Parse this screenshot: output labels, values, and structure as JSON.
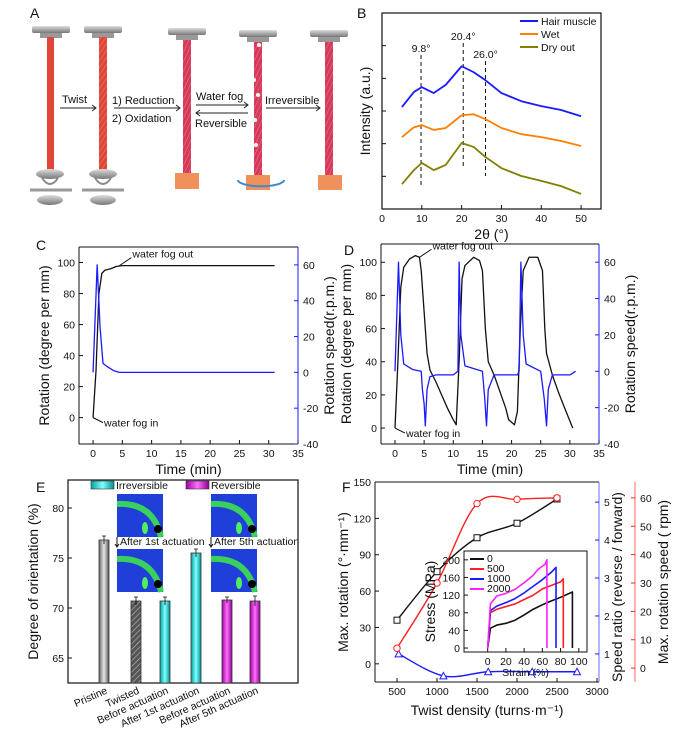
{
  "panels": {
    "A": {
      "label": "A",
      "steps": {
        "twist": "Twist",
        "reduction": "1) Reduction",
        "oxidation": "2) Oxidation",
        "water_fog": "Water fog",
        "reversible": "Reversible",
        "irreversible": "Irreversible"
      }
    },
    "B": {
      "label": "B"
    },
    "C": {
      "label": "C"
    },
    "D": {
      "label": "D"
    },
    "E": {
      "label": "E"
    },
    "F": {
      "label": "F"
    }
  },
  "colors": {
    "blue": "#1a1aff",
    "orange": "#ff8000",
    "olive": "#808000",
    "red": "#ff2020",
    "black": "#111111",
    "cyan": "#00e5e5",
    "magenta": "#e000e0",
    "gray": "#9a9a9a",
    "rod_red": "#e0473a",
    "rod_pink": "#d63a5a"
  },
  "chart_data": [
    {
      "panel": "B",
      "type": "line",
      "xlabel": "2θ (°)",
      "ylabel": "Intensity (a.u.)",
      "xlim": [
        0,
        55
      ],
      "ylim": [
        0,
        6
      ],
      "xticks": [
        0,
        10,
        20,
        30,
        40,
        50
      ],
      "ytick_marks": [
        1,
        2,
        3,
        4,
        5
      ],
      "legend_position": "top-right",
      "series": [
        {
          "name": "Hair muscle",
          "color": "#1a1aff",
          "x": [
            5,
            8,
            10,
            13,
            16,
            20,
            23,
            26,
            30,
            35,
            40,
            45,
            50
          ],
          "y": [
            3.12,
            3.58,
            3.73,
            3.55,
            3.8,
            4.37,
            4.19,
            3.94,
            3.55,
            3.3,
            3.15,
            3.03,
            2.84
          ]
        },
        {
          "name": "Wet",
          "color": "#ff8000",
          "x": [
            5,
            8,
            10,
            13,
            16,
            20,
            23,
            26,
            30,
            35,
            40,
            45,
            50
          ],
          "y": [
            2.2,
            2.5,
            2.57,
            2.42,
            2.48,
            2.87,
            2.9,
            2.75,
            2.48,
            2.29,
            2.2,
            2.08,
            1.93
          ]
        },
        {
          "name": "Dry out",
          "color": "#808000",
          "x": [
            5,
            8,
            10,
            13,
            16,
            20,
            23,
            26,
            30,
            35,
            40,
            45,
            50
          ],
          "y": [
            0.76,
            1.19,
            1.41,
            1.19,
            1.35,
            2.02,
            1.9,
            1.59,
            1.25,
            1.01,
            0.86,
            0.7,
            0.46
          ]
        }
      ],
      "annotations": [
        {
          "text": "9.8°",
          "x": 9.8
        },
        {
          "text": "20.4°",
          "x": 20.4
        },
        {
          "text": "26.0°",
          "x": 26.0
        }
      ]
    },
    {
      "panel": "C",
      "type": "line",
      "xlabel": "Time (min)",
      "ylabel": "Rotation (degree per mm)",
      "y2label": "Rotation speed(r.p.m.)",
      "xlim": [
        -2.4,
        35
      ],
      "ylim": [
        -17,
        110
      ],
      "y2lim": [
        -40,
        70
      ],
      "xticks": [
        0,
        5,
        10,
        15,
        20,
        25,
        30,
        35
      ],
      "yticks": [
        0,
        20,
        40,
        60,
        80,
        100
      ],
      "y2ticks": [
        -40,
        -20,
        0,
        20,
        40,
        60
      ],
      "series": [
        {
          "name": "Rotation",
          "axis": "left",
          "color": "#111111",
          "x": [
            0,
            0.5,
            1,
            1.5,
            2,
            3,
            4,
            5,
            31
          ],
          "y": [
            0,
            30,
            80,
            93,
            95,
            96,
            97.5,
            98,
            98
          ]
        },
        {
          "name": "Rotation speed",
          "axis": "right",
          "color": "#1a1aff",
          "x": [
            0,
            0.7,
            1.2,
            1.7,
            2.5,
            3.5,
            4.5,
            31
          ],
          "y": [
            0,
            60,
            25,
            5,
            3,
            1,
            0,
            0
          ]
        }
      ],
      "annotations": [
        {
          "text": "water fog out",
          "x": 4.5,
          "y": 98
        },
        {
          "text": "water fog in",
          "x": 0,
          "y": 0
        }
      ]
    },
    {
      "panel": "D",
      "type": "line",
      "xlabel": "Time (min)",
      "ylabel": "Rotation (degree per mm)",
      "y2label": "Rotation speed(r.p.m.)",
      "xlim": [
        -2.4,
        35
      ],
      "ylim": [
        -9.6,
        111
      ],
      "y2lim": [
        -40,
        70
      ],
      "xticks": [
        0,
        5,
        10,
        15,
        20,
        25,
        30,
        35
      ],
      "yticks": [
        0,
        20,
        40,
        60,
        80,
        100
      ],
      "y2ticks": [
        -40,
        -20,
        0,
        20,
        40,
        60
      ],
      "series": [
        {
          "name": "Rotation",
          "axis": "left",
          "color": "#111111",
          "x": [
            0,
            0.5,
            1,
            1.5,
            2.5,
            3.5,
            4.2,
            4.5,
            5,
            5.5,
            6,
            7,
            8,
            9,
            10,
            10.5,
            11,
            11.5,
            12,
            13.5,
            14.5,
            15,
            15.5,
            16,
            17,
            18,
            19,
            19.5,
            20.5,
            21,
            21.5,
            22,
            23,
            24.5,
            25.3,
            25.7,
            26,
            27,
            28,
            29,
            30.5
          ],
          "y": [
            0,
            40,
            85,
            97,
            102,
            104,
            103,
            95,
            70,
            45,
            35,
            28,
            20,
            12,
            5,
            2,
            40,
            90,
            98,
            103,
            101,
            95,
            60,
            40,
            32,
            22,
            12,
            5,
            2,
            10,
            60,
            95,
            103,
            103,
            95,
            60,
            45,
            32,
            22,
            13,
            0
          ]
        },
        {
          "name": "Rotation speed",
          "axis": "right",
          "color": "#1a1aff",
          "x": [
            0,
            0.6,
            1,
            1.5,
            3,
            4.5,
            4.7,
            5,
            5.2,
            5.5,
            6,
            7,
            10,
            10.8,
            11,
            11.3,
            12,
            15,
            15.4,
            15.7,
            16,
            17,
            21,
            21.3,
            21.6,
            22,
            22.5,
            25,
            25.6,
            26,
            26.3,
            27,
            30,
            31
          ],
          "y": [
            0,
            60,
            20,
            4,
            1,
            0,
            -10,
            -18,
            -30,
            -10,
            -3,
            -2,
            -2,
            0,
            60,
            20,
            3,
            0,
            -15,
            -30,
            -10,
            -2,
            -2,
            0,
            60,
            20,
            4,
            0,
            -15,
            -30,
            -10,
            -2,
            -2,
            0
          ]
        }
      ],
      "annotations": [
        {
          "text": "water fog out",
          "x": 4.2,
          "y": 103
        },
        {
          "text": "water fog in",
          "x": 0,
          "y": 0
        }
      ]
    },
    {
      "panel": "E",
      "type": "bar",
      "ylabel": "Degree of orientation (%)",
      "categories": [
        "Pristine",
        "Twisted",
        "Before actuation",
        "After 1st actuation",
        "Before actuation",
        "After 5th actuation"
      ],
      "values": [
        76.8,
        70.7,
        70.7,
        75.5,
        70.8,
        70.7
      ],
      "errors": [
        0.4,
        0.4,
        0.4,
        0.4,
        0.3,
        0.5
      ],
      "groups": [
        "none",
        "none",
        "Irreversible",
        "Irreversible",
        "Reversible",
        "Reversible"
      ],
      "ylim": [
        62.5,
        82.8
      ],
      "yticks": [
        65,
        70,
        75,
        80
      ],
      "legend": [
        {
          "name": "Irreversible",
          "color": "#00e5e5"
        },
        {
          "name": "Reversible",
          "color": "#e000e0"
        }
      ],
      "legend_position": "top",
      "inset_captions": [
        "After 1st actuation",
        "After 5th actuation"
      ]
    },
    {
      "panel": "F",
      "type": "line",
      "xlabel": "Twist density (turns·m⁻¹)",
      "ylabel": "Max. rotation (°·mm⁻¹)",
      "y2label": "Speed ratio (reverse / forward)",
      "y3label": "Max. rotation speed ( rpm)",
      "xlim": [
        225,
        3025
      ],
      "ylim": [
        -15,
        150
      ],
      "y2lim": [
        0.26,
        5.53
      ],
      "y3lim": [
        -4.9,
        65.6
      ],
      "xticks": [
        500,
        1000,
        1500,
        2000,
        2500,
        3000
      ],
      "yticks": [
        0,
        30,
        60,
        90,
        120,
        150
      ],
      "y2ticks": [
        1,
        2,
        3,
        4,
        5
      ],
      "y3ticks": [
        0,
        10,
        20,
        30,
        40,
        50,
        60
      ],
      "series": [
        {
          "name": "Max. rotation",
          "axis": "left",
          "marker": "square",
          "color": "#111111",
          "x": [
            500,
            1000,
            1500,
            2000,
            2500
          ],
          "y": [
            36,
            76,
            104,
            116,
            136
          ]
        },
        {
          "name": "Speed ratio",
          "axis": "right",
          "marker": "triangle",
          "color": "#1a1aff",
          "x": [
            520,
            1080,
            1640,
            2190,
            2750
          ],
          "y": [
            1.0,
            0.42,
            0.53,
            0.53,
            0.53
          ]
        },
        {
          "name": "Max. rotation speed",
          "axis": "right2",
          "marker": "circle",
          "color": "#ff2020",
          "x": [
            500,
            1000,
            1500,
            2000,
            2500
          ],
          "y": [
            7,
            30,
            58,
            59.5,
            60
          ]
        }
      ]
    },
    {
      "panel": "F-inset",
      "type": "line",
      "xlabel": "Strain (%)",
      "ylabel": "Stress (MPa)",
      "xlim": [
        -26,
        109
      ],
      "ylim": [
        -9,
        220
      ],
      "xticks": [
        0,
        20,
        40,
        60,
        80,
        100
      ],
      "yticks": [
        0,
        40,
        80,
        120,
        160,
        200
      ],
      "legend_position": "top-left",
      "series": [
        {
          "name": "0",
          "color": "#111111",
          "x": [
            0,
            3,
            10,
            20,
            30,
            40,
            50,
            60,
            70,
            80,
            93,
            93
          ],
          "y": [
            0,
            45,
            52,
            56,
            63,
            75,
            88,
            98,
            107,
            115,
            127,
            0
          ]
        },
        {
          "name": "500",
          "color": "#ff2020",
          "x": [
            0,
            3,
            10,
            20,
            30,
            40,
            50,
            60,
            70,
            80,
            83,
            83
          ],
          "y": [
            0,
            80,
            88,
            94,
            100,
            110,
            120,
            134,
            142,
            150,
            157,
            0
          ]
        },
        {
          "name": "1000",
          "color": "#1a1aff",
          "x": [
            0,
            3,
            10,
            20,
            30,
            40,
            50,
            60,
            70,
            75,
            75
          ],
          "y": [
            0,
            85,
            95,
            103,
            112,
            125,
            140,
            155,
            172,
            183,
            0
          ]
        },
        {
          "name": "2000",
          "color": "#ff20ff",
          "x": [
            0,
            3,
            10,
            20,
            30,
            40,
            50,
            55,
            63,
            65,
            65
          ],
          "y": [
            0,
            100,
            118,
            124,
            133,
            148,
            165,
            178,
            190,
            200,
            0
          ]
        }
      ]
    }
  ]
}
